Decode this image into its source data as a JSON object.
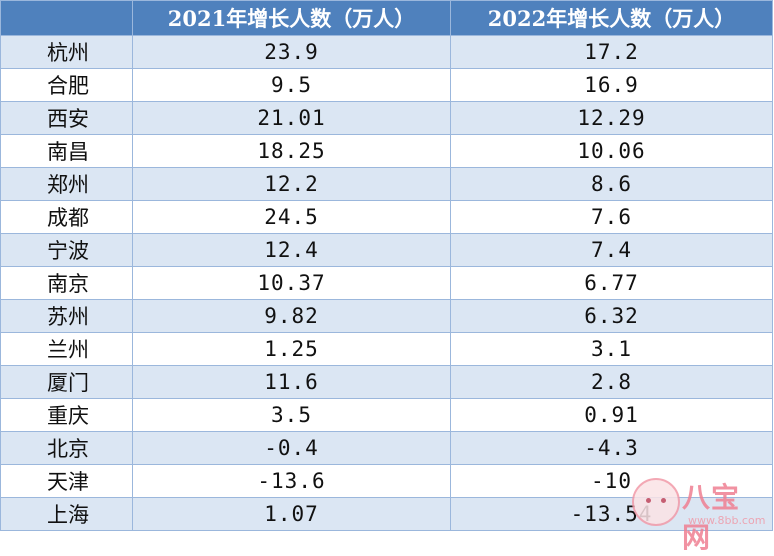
{
  "table": {
    "headers": [
      "",
      "2021年增长人数（万人）",
      "2022年增长人数（万人）"
    ],
    "rows": [
      [
        "杭州",
        "23.9",
        "17.2"
      ],
      [
        "合肥",
        "9.5",
        "16.9"
      ],
      [
        "西安",
        "21.01",
        "12.29"
      ],
      [
        "南昌",
        "18.25",
        "10.06"
      ],
      [
        "郑州",
        "12.2",
        "8.6"
      ],
      [
        "成都",
        "24.5",
        "7.6"
      ],
      [
        "宁波",
        "12.4",
        "7.4"
      ],
      [
        "南京",
        "10.37",
        "6.77"
      ],
      [
        "苏州",
        "9.82",
        "6.32"
      ],
      [
        "兰州",
        "1.25",
        "3.1"
      ],
      [
        "厦门",
        "11.6",
        "2.8"
      ],
      [
        "重庆",
        "3.5",
        "0.91"
      ],
      [
        "北京",
        "-0.4",
        "-4.3"
      ],
      [
        "天津",
        "-13.6",
        "-10"
      ],
      [
        "上海",
        "1.07",
        "-13.54"
      ]
    ]
  },
  "watermark": {
    "brand": "八宝网",
    "site": "www.8bb.com"
  },
  "colors": {
    "header_bg": "#4f81bd",
    "band_bg": "#dbe6f3",
    "grid": "#9bb7dc"
  }
}
